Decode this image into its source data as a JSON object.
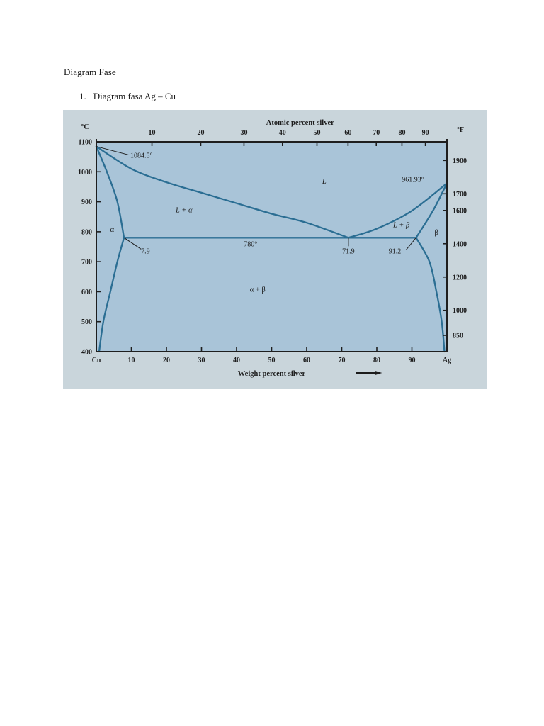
{
  "document": {
    "heading": "Diagram Fase",
    "list": [
      {
        "number": "1.",
        "text": "Diagram fasa Ag – Cu"
      }
    ]
  },
  "colors": {
    "paper": "#ffffff",
    "figure_background": "#c9d5db",
    "plot_area": "#a9c4d8",
    "phase_boundary": "#2b6e93",
    "text": "#1a1a1a"
  },
  "chart_data": {
    "type": "line",
    "top_axis_label": "Atomic percent silver",
    "xlabel": "Weight percent silver",
    "left_unit": "°C",
    "right_unit": "°F",
    "xlim": [
      0,
      100
    ],
    "ylim": [
      400,
      1100
    ],
    "x_ticks": [
      10,
      20,
      30,
      40,
      50,
      60,
      70,
      80,
      90
    ],
    "x_end_labels": {
      "left": "Cu",
      "right": "Ag"
    },
    "top_ticks": [
      10,
      20,
      30,
      40,
      50,
      60,
      70,
      80,
      90
    ],
    "left_ticks": [
      400,
      500,
      600,
      700,
      800,
      900,
      1000,
      1100
    ],
    "right_ticks": [
      850,
      1000,
      1200,
      1400,
      1600,
      1700,
      1900
    ],
    "series": [
      {
        "id": "liquidus-cu",
        "points": [
          [
            0,
            1084.5
          ],
          [
            10,
            1010
          ],
          [
            20,
            965
          ],
          [
            30,
            930
          ],
          [
            40,
            895
          ],
          [
            50,
            860
          ],
          [
            60,
            830
          ],
          [
            71.9,
            780
          ]
        ]
      },
      {
        "id": "liquidus-ag",
        "points": [
          [
            71.9,
            780
          ],
          [
            80,
            810
          ],
          [
            90,
            870
          ],
          [
            100,
            961.93
          ]
        ]
      },
      {
        "id": "solidus-alpha",
        "points": [
          [
            0,
            1084.5
          ],
          [
            3,
            1000
          ],
          [
            6,
            900
          ],
          [
            7.9,
            780
          ]
        ]
      },
      {
        "id": "solvus-alpha",
        "points": [
          [
            7.9,
            780
          ],
          [
            6,
            700
          ],
          [
            4,
            600
          ],
          [
            2,
            500
          ],
          [
            0.8,
            400
          ]
        ]
      },
      {
        "id": "eutectic-isotherm",
        "points": [
          [
            7.9,
            780
          ],
          [
            91.2,
            780
          ]
        ]
      },
      {
        "id": "solidus-beta",
        "points": [
          [
            91.2,
            780
          ],
          [
            96,
            870
          ],
          [
            100,
            961.93
          ]
        ]
      },
      {
        "id": "solvus-beta",
        "points": [
          [
            91.2,
            780
          ],
          [
            95,
            700
          ],
          [
            97,
            600
          ],
          [
            98.5,
            500
          ],
          [
            99.3,
            400
          ]
        ]
      }
    ],
    "phase_labels": [
      {
        "text": "L",
        "x": 65,
        "y": 960,
        "italic": true
      },
      {
        "text": "L + α",
        "x": 25,
        "y": 865,
        "italic": true
      },
      {
        "text": "α",
        "x": 4.5,
        "y": 800
      },
      {
        "text": "α + β",
        "x": 46,
        "y": 600
      },
      {
        "text": "L + β",
        "x": 87,
        "y": 815,
        "italic": true
      },
      {
        "text": "β",
        "x": 97,
        "y": 790
      }
    ],
    "annotations": [
      {
        "text": "1084.5°",
        "x": 0,
        "y": 1084.5
      },
      {
        "text": "961.93°",
        "x": 100,
        "y": 961.93
      },
      {
        "text": "780°",
        "x": 44,
        "y": 770
      },
      {
        "text": "7.9",
        "x": 7.9,
        "y": 780
      },
      {
        "text": "71.9",
        "x": 71.9,
        "y": 780
      },
      {
        "text": "91.2",
        "x": 91.2,
        "y": 780
      }
    ]
  }
}
